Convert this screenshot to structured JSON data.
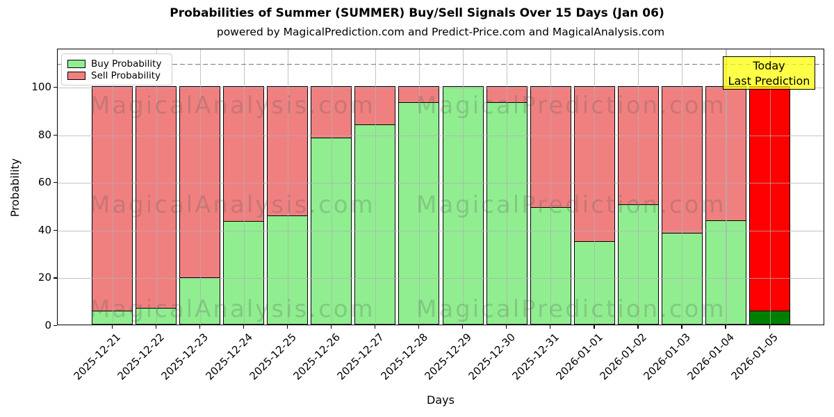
{
  "figure": {
    "subtitle": "powered by MagicalPrediction.com and Predict-Price.com and MagicalAnalysis.com",
    "watermark_left": "MagicalAnalysis.com",
    "watermark_right": "MagicalPrediction.com"
  },
  "legend": {
    "items": [
      {
        "label": "Buy Probability",
        "color": "#90EE90"
      },
      {
        "label": "Sell Probability",
        "color": "#F08080"
      }
    ]
  },
  "annotation_box": {
    "line1": "Today",
    "line2": "Last Prediction",
    "bg_color": "#FFFF00"
  },
  "axes": {
    "xlabel": "Days",
    "ylabel": "Probability",
    "yticks": [
      0,
      20,
      40,
      60,
      80,
      100
    ],
    "ylim": [
      0,
      116
    ],
    "dashed_guide_y": 110,
    "grid": true,
    "gridline_color": "#b0b0b0"
  },
  "chart_data": {
    "type": "bar",
    "stacked": true,
    "title": "Probabilities of Summer (SUMMER) Buy/Sell Signals Over 15 Days (Jan 06)",
    "xlabel": "Days",
    "ylabel": "Probability",
    "ylim": [
      0,
      116
    ],
    "legend_position": "upper left",
    "categories": [
      "2025-12-21",
      "2025-12-22",
      "2025-12-23",
      "2025-12-24",
      "2025-12-25",
      "2025-12-26",
      "2025-12-27",
      "2025-12-28",
      "2025-12-29",
      "2025-12-30",
      "2025-12-31",
      "2026-01-01",
      "2026-01-02",
      "2026-01-03",
      "2026-01-04",
      "2026-01-05"
    ],
    "series": [
      {
        "name": "Buy Probability",
        "color": "#90EE90",
        "values": [
          6,
          7,
          20,
          43.5,
          46,
          78.5,
          84,
          93.5,
          100,
          93.5,
          49.5,
          35,
          50.5,
          38.5,
          44,
          6
        ]
      },
      {
        "name": "Sell Probability",
        "color": "#F08080",
        "values": [
          94,
          93,
          80,
          56.5,
          54,
          21.5,
          16,
          6.5,
          0,
          6.5,
          50.5,
          65,
          49.5,
          61.5,
          56,
          94
        ]
      }
    ],
    "highlight_last_bar": {
      "label": "Today / Last Prediction",
      "buy_color": "#008000",
      "sell_color": "#FF0000"
    },
    "bar_edge_color": "#000000"
  }
}
